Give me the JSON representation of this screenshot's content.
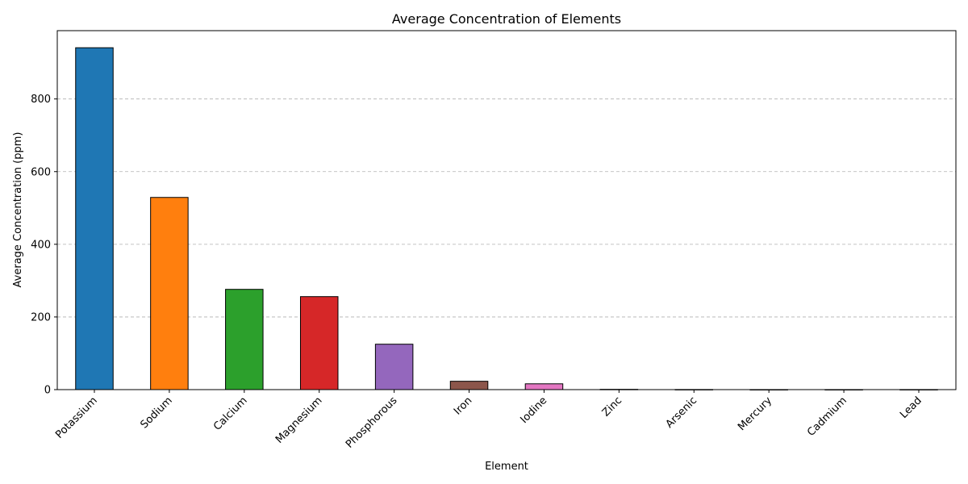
{
  "chart_data": {
    "type": "bar",
    "title": "Average Concentration of Elements",
    "xlabel": "Element",
    "ylabel": "Average Concentration (ppm)",
    "categories": [
      "Potassium",
      "Sodium",
      "Calcium",
      "Magnesium",
      "Phosphorous",
      "Iron",
      "Iodine",
      "Zinc",
      "Arsenic",
      "Mercury",
      "Cadmium",
      "Lead"
    ],
    "values": [
      941,
      529,
      276,
      256,
      125,
      23,
      16,
      0.8,
      0.3,
      0.1,
      0.1,
      0.2
    ],
    "colors": [
      "#1f77b4",
      "#ff7f0e",
      "#2ca02c",
      "#d62728",
      "#9467bd",
      "#8c564b",
      "#e377c2",
      "#7f7f7f",
      "#bcbd22",
      "#17becf",
      "#1f77b4",
      "#ff7f0e"
    ],
    "ylim": [
      0,
      988
    ],
    "yticks": [
      0,
      200,
      400,
      600,
      800
    ],
    "grid": "horizontal-dashed",
    "legend": "none"
  }
}
